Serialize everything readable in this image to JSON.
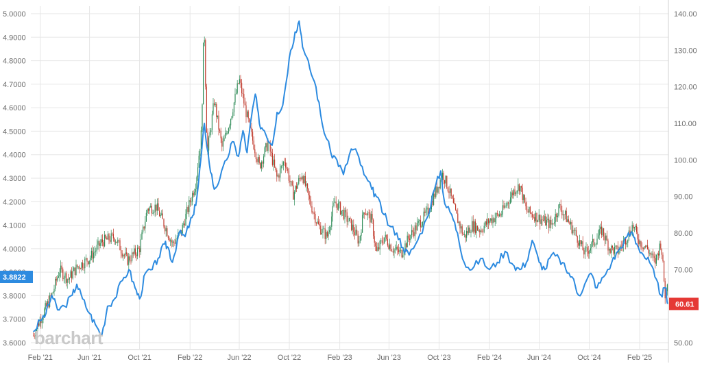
{
  "watermark": "barchart",
  "chart_data": {
    "type": "line",
    "x_labels": [
      "Feb '21",
      "Jun '21",
      "Oct '21",
      "Feb '22",
      "Jun '22",
      "Oct '22",
      "Feb '23",
      "Jun '23",
      "Oct '23",
      "Feb '24",
      "Jun '24",
      "Oct '24",
      "Feb '25"
    ],
    "left_axis": {
      "ticks": [
        "5.0000",
        "4.9000",
        "4.8000",
        "4.7000",
        "4.6000",
        "4.5000",
        "4.4000",
        "4.3000",
        "4.2000",
        "4.1000",
        "4.0000",
        "3.9000",
        "3.8000",
        "3.7000",
        "3.6000"
      ],
      "ylim": [
        3.6,
        5.0
      ]
    },
    "right_axis": {
      "ticks": [
        "140.00",
        "130.00",
        "120.00",
        "110.00",
        "100.00",
        "90.00",
        "80.00",
        "70.00",
        "60.00",
        "50.00"
      ],
      "ylim": [
        50,
        140
      ]
    },
    "grid": true,
    "series": [
      {
        "axis": "left",
        "style": "candlestick",
        "up_color": "#2e8b57",
        "down_color": "#c0392b",
        "last_value_label": "3.8822",
        "badge_color": "#2d8be0",
        "points": [
          [
            "2021-01-15",
            3.63
          ],
          [
            "2021-02-01",
            3.7
          ],
          [
            "2021-03-01",
            3.8
          ],
          [
            "2021-03-20",
            3.91
          ],
          [
            "2021-04-10",
            3.87
          ],
          [
            "2021-05-01",
            3.92
          ],
          [
            "2021-06-01",
            3.96
          ],
          [
            "2021-07-01",
            4.03
          ],
          [
            "2021-08-01",
            4.05
          ],
          [
            "2021-09-01",
            3.95
          ],
          [
            "2021-10-01",
            4.0
          ],
          [
            "2021-10-20",
            4.17
          ],
          [
            "2021-11-10",
            4.18
          ],
          [
            "2021-12-01",
            4.1
          ],
          [
            "2021-12-20",
            4.02
          ],
          [
            "2022-01-10",
            4.07
          ],
          [
            "2022-02-01",
            4.2
          ],
          [
            "2022-02-15",
            4.28
          ],
          [
            "2022-03-01",
            4.5
          ],
          [
            "2022-03-07",
            4.98
          ],
          [
            "2022-03-15",
            4.4
          ],
          [
            "2022-04-01",
            4.63
          ],
          [
            "2022-04-20",
            4.43
          ],
          [
            "2022-05-10",
            4.55
          ],
          [
            "2022-06-01",
            4.72
          ],
          [
            "2022-06-15",
            4.6
          ],
          [
            "2022-07-01",
            4.48
          ],
          [
            "2022-07-20",
            4.35
          ],
          [
            "2022-08-10",
            4.45
          ],
          [
            "2022-09-01",
            4.3
          ],
          [
            "2022-09-20",
            4.38
          ],
          [
            "2022-10-10",
            4.23
          ],
          [
            "2022-11-01",
            4.32
          ],
          [
            "2022-11-20",
            4.2
          ],
          [
            "2022-12-10",
            4.1
          ],
          [
            "2023-01-01",
            4.05
          ],
          [
            "2023-01-20",
            4.2
          ],
          [
            "2023-02-10",
            4.15
          ],
          [
            "2023-03-01",
            4.1
          ],
          [
            "2023-03-20",
            4.03
          ],
          [
            "2023-04-01",
            4.17
          ],
          [
            "2023-04-20",
            4.12
          ],
          [
            "2023-05-01",
            3.98
          ],
          [
            "2023-05-20",
            4.05
          ],
          [
            "2023-06-10",
            4.0
          ],
          [
            "2023-07-01",
            3.98
          ],
          [
            "2023-07-20",
            4.05
          ],
          [
            "2023-08-10",
            4.1
          ],
          [
            "2023-09-01",
            4.15
          ],
          [
            "2023-09-20",
            4.23
          ],
          [
            "2023-10-10",
            4.32
          ],
          [
            "2023-10-25",
            4.25
          ],
          [
            "2023-11-10",
            4.15
          ],
          [
            "2023-12-01",
            4.05
          ],
          [
            "2023-12-20",
            4.1
          ],
          [
            "2024-01-10",
            4.08
          ],
          [
            "2024-02-01",
            4.12
          ],
          [
            "2024-03-01",
            4.15
          ],
          [
            "2024-04-01",
            4.25
          ],
          [
            "2024-04-15",
            4.27
          ],
          [
            "2024-05-01",
            4.16
          ],
          [
            "2024-06-01",
            4.13
          ],
          [
            "2024-07-01",
            4.1
          ],
          [
            "2024-07-20",
            4.18
          ],
          [
            "2024-08-10",
            4.12
          ],
          [
            "2024-09-01",
            4.05
          ],
          [
            "2024-09-20",
            3.98
          ],
          [
            "2024-10-10",
            4.02
          ],
          [
            "2024-11-01",
            4.08
          ],
          [
            "2024-11-20",
            4.0
          ],
          [
            "2024-12-10",
            3.99
          ],
          [
            "2025-01-01",
            4.05
          ],
          [
            "2025-01-15",
            4.1
          ],
          [
            "2025-02-01",
            4.03
          ],
          [
            "2025-02-20",
            4.0
          ],
          [
            "2025-03-10",
            3.94
          ],
          [
            "2025-03-25",
            4.03
          ],
          [
            "2025-04-05",
            3.78
          ],
          [
            "2025-04-10",
            3.88
          ]
        ]
      },
      {
        "axis": "right",
        "style": "line",
        "color": "#2d8be0",
        "last_value_label": "60.61",
        "badge_color": "#e53935",
        "points": [
          [
            "2021-01-15",
            53
          ],
          [
            "2021-02-01",
            56
          ],
          [
            "2021-02-15",
            58
          ],
          [
            "2021-03-01",
            63
          ],
          [
            "2021-03-15",
            59
          ],
          [
            "2021-04-01",
            60
          ],
          [
            "2021-04-20",
            63
          ],
          [
            "2021-05-01",
            66
          ],
          [
            "2021-05-15",
            62
          ],
          [
            "2021-06-01",
            58
          ],
          [
            "2021-06-15",
            55
          ],
          [
            "2021-07-01",
            52
          ],
          [
            "2021-07-15",
            60
          ],
          [
            "2021-08-01",
            62
          ],
          [
            "2021-08-20",
            67
          ],
          [
            "2021-09-05",
            70
          ],
          [
            "2021-09-20",
            65
          ],
          [
            "2021-10-01",
            62
          ],
          [
            "2021-10-15",
            69
          ],
          [
            "2021-11-01",
            70
          ],
          [
            "2021-11-15",
            73
          ],
          [
            "2021-12-01",
            77
          ],
          [
            "2021-12-10",
            76
          ],
          [
            "2021-12-20",
            72
          ],
          [
            "2022-01-05",
            80
          ],
          [
            "2022-01-20",
            79
          ],
          [
            "2022-02-01",
            83
          ],
          [
            "2022-02-10",
            85
          ],
          [
            "2022-02-20",
            92
          ],
          [
            "2022-03-01",
            102
          ],
          [
            "2022-03-08",
            110
          ],
          [
            "2022-03-20",
            99
          ],
          [
            "2022-04-01",
            92
          ],
          [
            "2022-04-15",
            95
          ],
          [
            "2022-05-01",
            100
          ],
          [
            "2022-05-15",
            105
          ],
          [
            "2022-05-30",
            101
          ],
          [
            "2022-06-10",
            108
          ],
          [
            "2022-06-20",
            102
          ],
          [
            "2022-07-01",
            112
          ],
          [
            "2022-07-10",
            118
          ],
          [
            "2022-07-20",
            110
          ],
          [
            "2022-08-01",
            108
          ],
          [
            "2022-08-20",
            104
          ],
          [
            "2022-09-01",
            113
          ],
          [
            "2022-09-15",
            115
          ],
          [
            "2022-10-01",
            128
          ],
          [
            "2022-10-15",
            135
          ],
          [
            "2022-10-25",
            138
          ],
          [
            "2022-11-05",
            130
          ],
          [
            "2022-11-20",
            125
          ],
          [
            "2022-12-05",
            120
          ],
          [
            "2022-12-20",
            110
          ],
          [
            "2023-01-10",
            102
          ],
          [
            "2023-01-25",
            100
          ],
          [
            "2023-02-10",
            96
          ],
          [
            "2023-03-01",
            103
          ],
          [
            "2023-03-15",
            102
          ],
          [
            "2023-04-01",
            96
          ],
          [
            "2023-04-20",
            92
          ],
          [
            "2023-05-01",
            90
          ],
          [
            "2023-05-20",
            85
          ],
          [
            "2023-06-01",
            82
          ],
          [
            "2023-06-20",
            80
          ],
          [
            "2023-07-05",
            76
          ],
          [
            "2023-07-20",
            74
          ],
          [
            "2023-08-10",
            78
          ],
          [
            "2023-09-01",
            84
          ],
          [
            "2023-09-20",
            92
          ],
          [
            "2023-10-05",
            97
          ],
          [
            "2023-10-15",
            88
          ],
          [
            "2023-11-01",
            85
          ],
          [
            "2023-11-15",
            80
          ],
          [
            "2023-12-01",
            72
          ],
          [
            "2023-12-20",
            70
          ],
          [
            "2024-01-10",
            73
          ],
          [
            "2024-02-01",
            70
          ],
          [
            "2024-02-20",
            72
          ],
          [
            "2024-03-10",
            75
          ],
          [
            "2024-04-01",
            71
          ],
          [
            "2024-04-15",
            70
          ],
          [
            "2024-05-01",
            72
          ],
          [
            "2024-05-15",
            78
          ],
          [
            "2024-06-01",
            72
          ],
          [
            "2024-06-15",
            70
          ],
          [
            "2024-07-01",
            74
          ],
          [
            "2024-07-20",
            73
          ],
          [
            "2024-08-05",
            70
          ],
          [
            "2024-08-20",
            68
          ],
          [
            "2024-09-05",
            63
          ],
          [
            "2024-09-20",
            66
          ],
          [
            "2024-10-05",
            69
          ],
          [
            "2024-10-20",
            65
          ],
          [
            "2024-11-05",
            68
          ],
          [
            "2024-11-25",
            72
          ],
          [
            "2024-12-10",
            75
          ],
          [
            "2025-01-01",
            79
          ],
          [
            "2025-01-15",
            80
          ],
          [
            "2025-01-25",
            77
          ],
          [
            "2025-02-10",
            74
          ],
          [
            "2025-02-25",
            72
          ],
          [
            "2025-03-10",
            68
          ],
          [
            "2025-03-25",
            63
          ],
          [
            "2025-04-05",
            65
          ],
          [
            "2025-04-10",
            60.61
          ]
        ]
      }
    ]
  }
}
